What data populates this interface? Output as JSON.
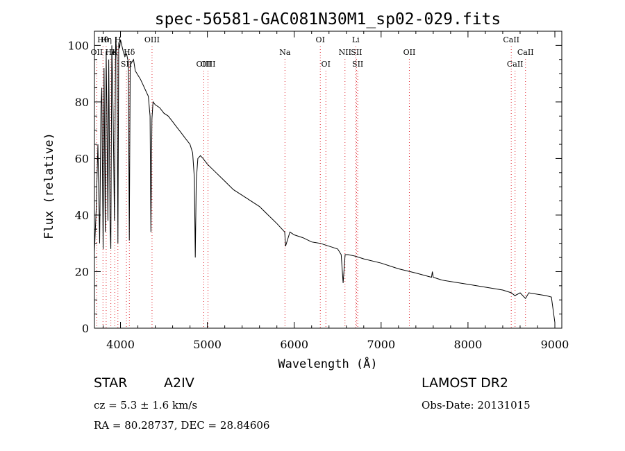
{
  "chart_data": {
    "type": "line",
    "title": "spec-56581-GAC081N30M1_sp02-029.fits",
    "xlabel": "Wavelength (Å)",
    "ylabel": "Flux (relative)",
    "xlim": [
      3700,
      9080
    ],
    "ylim": [
      0,
      105
    ],
    "xticks": [
      4000,
      5000,
      6000,
      7000,
      8000,
      9000
    ],
    "yticks": [
      0,
      20,
      40,
      60,
      80,
      100
    ],
    "grid": false,
    "series": [
      {
        "x": [
          3700,
          3720,
          3740,
          3760,
          3775,
          3785,
          3795,
          3800,
          3810,
          3825,
          3835,
          3845,
          3855,
          3865,
          3880,
          3889,
          3900,
          3915,
          3930,
          3945,
          3960,
          3970,
          3980,
          3990,
          4000,
          4015,
          4030,
          4050,
          4070,
          4090,
          4101,
          4112,
          4130,
          4150,
          4170,
          4190,
          4210,
          4230,
          4260,
          4290,
          4320,
          4340,
          4350,
          4362,
          4375,
          4400,
          4450,
          4500,
          4550,
          4600,
          4650,
          4700,
          4750,
          4800,
          4830,
          4850,
          4861,
          4872,
          4890,
          4920,
          4950,
          5000,
          5100,
          5200,
          5300,
          5400,
          5500,
          5600,
          5700,
          5800,
          5890,
          5900,
          5950,
          6000,
          6100,
          6200,
          6300,
          6400,
          6450,
          6500,
          6540,
          6563,
          6586,
          6620,
          6700,
          6800,
          7000,
          7200,
          7400,
          7580,
          7590,
          7600,
          7700,
          7800,
          8000,
          8200,
          8400,
          8500,
          8540,
          8600,
          8662,
          8700,
          8800,
          8900,
          8960,
          9000
        ],
        "y": [
          27,
          42,
          65,
          30,
          78,
          85,
          45,
          28,
          92,
          34,
          98,
          72,
          38,
          95,
          36,
          28,
          100,
          76,
          38,
          103,
          95,
          30,
          101,
          99,
          102,
          100,
          98,
          96,
          97,
          94,
          31,
          93,
          94,
          95,
          91,
          90,
          89,
          88,
          86,
          84,
          82,
          75,
          34,
          74,
          80,
          79,
          78,
          76,
          75,
          73,
          71,
          69,
          67,
          65,
          62,
          53,
          25,
          52,
          60,
          61,
          60,
          58,
          55,
          52,
          49,
          47,
          45,
          43,
          40,
          37,
          34,
          29,
          34,
          33,
          32,
          30.5,
          30,
          29,
          28.5,
          28,
          26,
          16,
          26,
          26,
          25.5,
          24.5,
          23,
          21,
          19.5,
          18,
          20,
          18,
          17,
          16.5,
          15.5,
          14.5,
          13.5,
          12.5,
          11.5,
          12.5,
          10.5,
          12.5,
          12,
          11.5,
          11,
          2
        ]
      }
    ],
    "spectral_lines": [
      {
        "label": "Hθ",
        "x": 3798,
        "row": 1
      },
      {
        "label": "Hη",
        "x": 3835,
        "row": 1
      },
      {
        "label": "H",
        "x": 3970,
        "row": 1
      },
      {
        "label": "OII",
        "x": 3727,
        "row": 2
      },
      {
        "label": "He",
        "x": 3889,
        "row": 2
      },
      {
        "label": "K",
        "x": 3934,
        "row": 2
      },
      {
        "label": "Hδ",
        "x": 4102,
        "row": 2
      },
      {
        "label": "OIII",
        "x": 4363,
        "row": 1
      },
      {
        "label": "SII",
        "x": 4068,
        "row": 3
      },
      {
        "label": "OIII",
        "x": 4959,
        "row": 3
      },
      {
        "label": "OIII",
        "x": 5007,
        "row": 3
      },
      {
        "label": "Na",
        "x": 5893,
        "row": 2
      },
      {
        "label": "OI",
        "x": 6300,
        "row": 1
      },
      {
        "label": "OI",
        "x": 6364,
        "row": 3
      },
      {
        "label": "Li",
        "x": 6708,
        "row": 1
      },
      {
        "label": "NII",
        "x": 6584,
        "row": 2
      },
      {
        "label": "SII",
        "x": 6717,
        "row": 2
      },
      {
        "label": "SII",
        "x": 6731,
        "row": 3
      },
      {
        "label": "OII",
        "x": 7325,
        "row": 2
      },
      {
        "label": "CaII",
        "x": 8498,
        "row": 1
      },
      {
        "label": "CaII",
        "x": 8662,
        "row": 2
      },
      {
        "label": "CaII",
        "x": 8542,
        "row": 3
      }
    ],
    "line_color": "#000000",
    "marker_color": "#e0202a"
  },
  "footer": {
    "object_type": "STAR",
    "subclass": "A2IV",
    "survey": "LAMOST DR2",
    "redshift": "cz = 5.3 ± 1.6 km/s",
    "obs_date": "Obs-Date: 20131015",
    "coords": "RA =  80.28737, DEC =  28.84606"
  }
}
